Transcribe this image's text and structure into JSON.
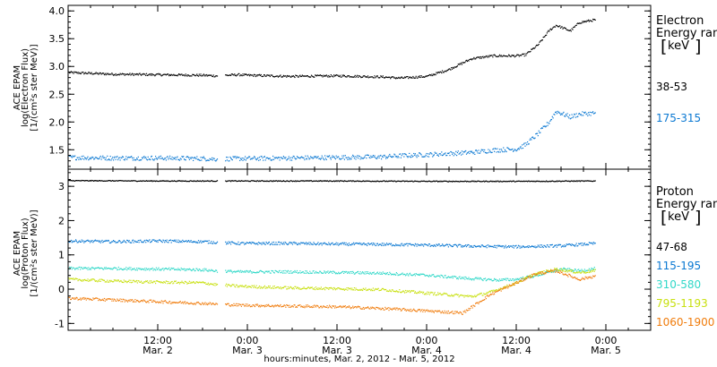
{
  "chart_data": [
    {
      "type": "scatter",
      "panel": "electron",
      "ylabel": [
        "ACE EPAM",
        "log(Electron Flux)",
        "[1/(cm²s ster MeV)]"
      ],
      "ylim": [
        1.15,
        4.1
      ],
      "yticks": [
        1.5,
        2.0,
        2.5,
        3.0,
        3.5,
        4.0
      ],
      "ytick_labels": [
        "1.5",
        "2.0",
        "2.5",
        "3.0",
        "3.5",
        "4.0"
      ],
      "legend": {
        "placement": "right",
        "title": [
          "Electron",
          "Energy ran"
        ],
        "unit": "keV"
      },
      "series": [
        {
          "name": "38-53",
          "color": "#000000",
          "x": [
            2.0,
            2.25,
            2.5,
            2.75,
            2.82,
            2.95,
            3.0,
            3.25,
            3.5,
            3.75,
            3.85,
            4.0,
            4.12,
            4.25,
            4.37,
            4.5,
            4.55,
            4.62,
            4.68,
            4.72,
            4.8,
            4.85,
            4.94
          ],
          "y": [
            2.9,
            2.87,
            2.86,
            2.85,
            2.84,
            2.86,
            2.85,
            2.83,
            2.84,
            2.82,
            2.8,
            2.83,
            2.95,
            3.15,
            3.2,
            3.2,
            3.22,
            3.4,
            3.65,
            3.75,
            3.65,
            3.8,
            3.85
          ]
        },
        {
          "name": "175-315",
          "color": "#0a78d2",
          "x": [
            2.0,
            2.25,
            2.5,
            2.75,
            2.82,
            2.95,
            3.0,
            3.25,
            3.5,
            3.75,
            3.85,
            4.0,
            4.12,
            4.25,
            4.37,
            4.5,
            4.55,
            4.62,
            4.68,
            4.72,
            4.8,
            4.85,
            4.94
          ],
          "y": [
            1.37,
            1.36,
            1.36,
            1.35,
            1.34,
            1.35,
            1.35,
            1.36,
            1.37,
            1.38,
            1.4,
            1.42,
            1.44,
            1.46,
            1.5,
            1.52,
            1.6,
            1.8,
            2.0,
            2.2,
            2.1,
            2.15,
            2.17
          ]
        }
      ]
    },
    {
      "type": "scatter",
      "panel": "proton",
      "ylabel": [
        "ACE EPAM",
        "log(Proton Flux)",
        "[1/(cm²s ster MeV)]"
      ],
      "ylim": [
        -1.2,
        3.5
      ],
      "yticks": [
        -1,
        0,
        1,
        2,
        3
      ],
      "ytick_labels": [
        "-1",
        "0",
        "1",
        "2",
        "3"
      ],
      "legend": {
        "placement": "right",
        "title": [
          "Proton",
          "Energy ran"
        ],
        "unit": "keV"
      },
      "series": [
        {
          "name": "47-68",
          "color": "#000000",
          "x": [
            2.0,
            2.5,
            2.82,
            2.95,
            3.5,
            4.0,
            4.5,
            4.94
          ],
          "y": [
            3.18,
            3.17,
            3.17,
            3.17,
            3.17,
            3.16,
            3.16,
            3.17
          ]
        },
        {
          "name": "115-195",
          "color": "#0a78d2",
          "x": [
            2.0,
            2.25,
            2.5,
            2.75,
            2.82,
            2.95,
            3.25,
            3.5,
            3.75,
            4.0,
            4.25,
            4.5,
            4.75,
            4.94
          ],
          "y": [
            1.42,
            1.4,
            1.42,
            1.4,
            1.38,
            1.35,
            1.35,
            1.33,
            1.32,
            1.3,
            1.27,
            1.25,
            1.28,
            1.35
          ]
        },
        {
          "name": "310-580",
          "color": "#30d8c8",
          "x": [
            2.0,
            2.25,
            2.5,
            2.75,
            2.82,
            2.95,
            3.25,
            3.5,
            3.75,
            4.0,
            4.25,
            4.4,
            4.5,
            4.6,
            4.75,
            4.85,
            4.94
          ],
          "y": [
            0.62,
            0.62,
            0.6,
            0.58,
            0.55,
            0.52,
            0.52,
            0.5,
            0.48,
            0.42,
            0.32,
            0.28,
            0.3,
            0.4,
            0.6,
            0.55,
            0.62
          ]
        },
        {
          "name": "795-1193",
          "color": "#c8e010",
          "x": [
            2.0,
            2.25,
            2.5,
            2.75,
            2.82,
            2.95,
            3.25,
            3.5,
            3.75,
            4.0,
            4.25,
            4.35,
            4.5,
            4.6,
            4.72,
            4.85,
            4.94
          ],
          "y": [
            0.3,
            0.25,
            0.22,
            0.2,
            0.15,
            0.1,
            0.05,
            0.03,
            0.0,
            -0.1,
            -0.2,
            -0.08,
            0.2,
            0.45,
            0.6,
            0.5,
            0.55
          ]
        },
        {
          "name": "1060-1900",
          "color": "#f07c0c",
          "x": [
            2.0,
            2.25,
            2.5,
            2.75,
            2.82,
            2.95,
            3.25,
            3.5,
            3.75,
            4.0,
            4.2,
            4.28,
            4.35,
            4.5,
            4.6,
            4.72,
            4.85,
            4.94
          ],
          "y": [
            -0.25,
            -0.3,
            -0.35,
            -0.4,
            -0.42,
            -0.45,
            -0.48,
            -0.5,
            -0.55,
            -0.62,
            -0.68,
            -0.4,
            -0.15,
            0.2,
            0.45,
            0.55,
            0.3,
            0.4
          ]
        }
      ]
    }
  ],
  "x_axis": {
    "xlim": [
      2.0,
      5.25
    ],
    "ticks": [
      {
        "x": 2.5,
        "time": "12:00",
        "date": "Mar. 2"
      },
      {
        "x": 3.0,
        "time": "0:00",
        "date": "Mar. 3"
      },
      {
        "x": 3.5,
        "time": "12:00",
        "date": "Mar. 3"
      },
      {
        "x": 4.0,
        "time": "0:00",
        "date": "Mar. 4"
      },
      {
        "x": 4.5,
        "time": "12:00",
        "date": "Mar. 4"
      },
      {
        "x": 5.0,
        "time": "0:00",
        "date": "Mar. 5"
      }
    ],
    "xlabel": "hours:minutes, Mar.  2, 2012 - Mar.  5, 2012"
  }
}
